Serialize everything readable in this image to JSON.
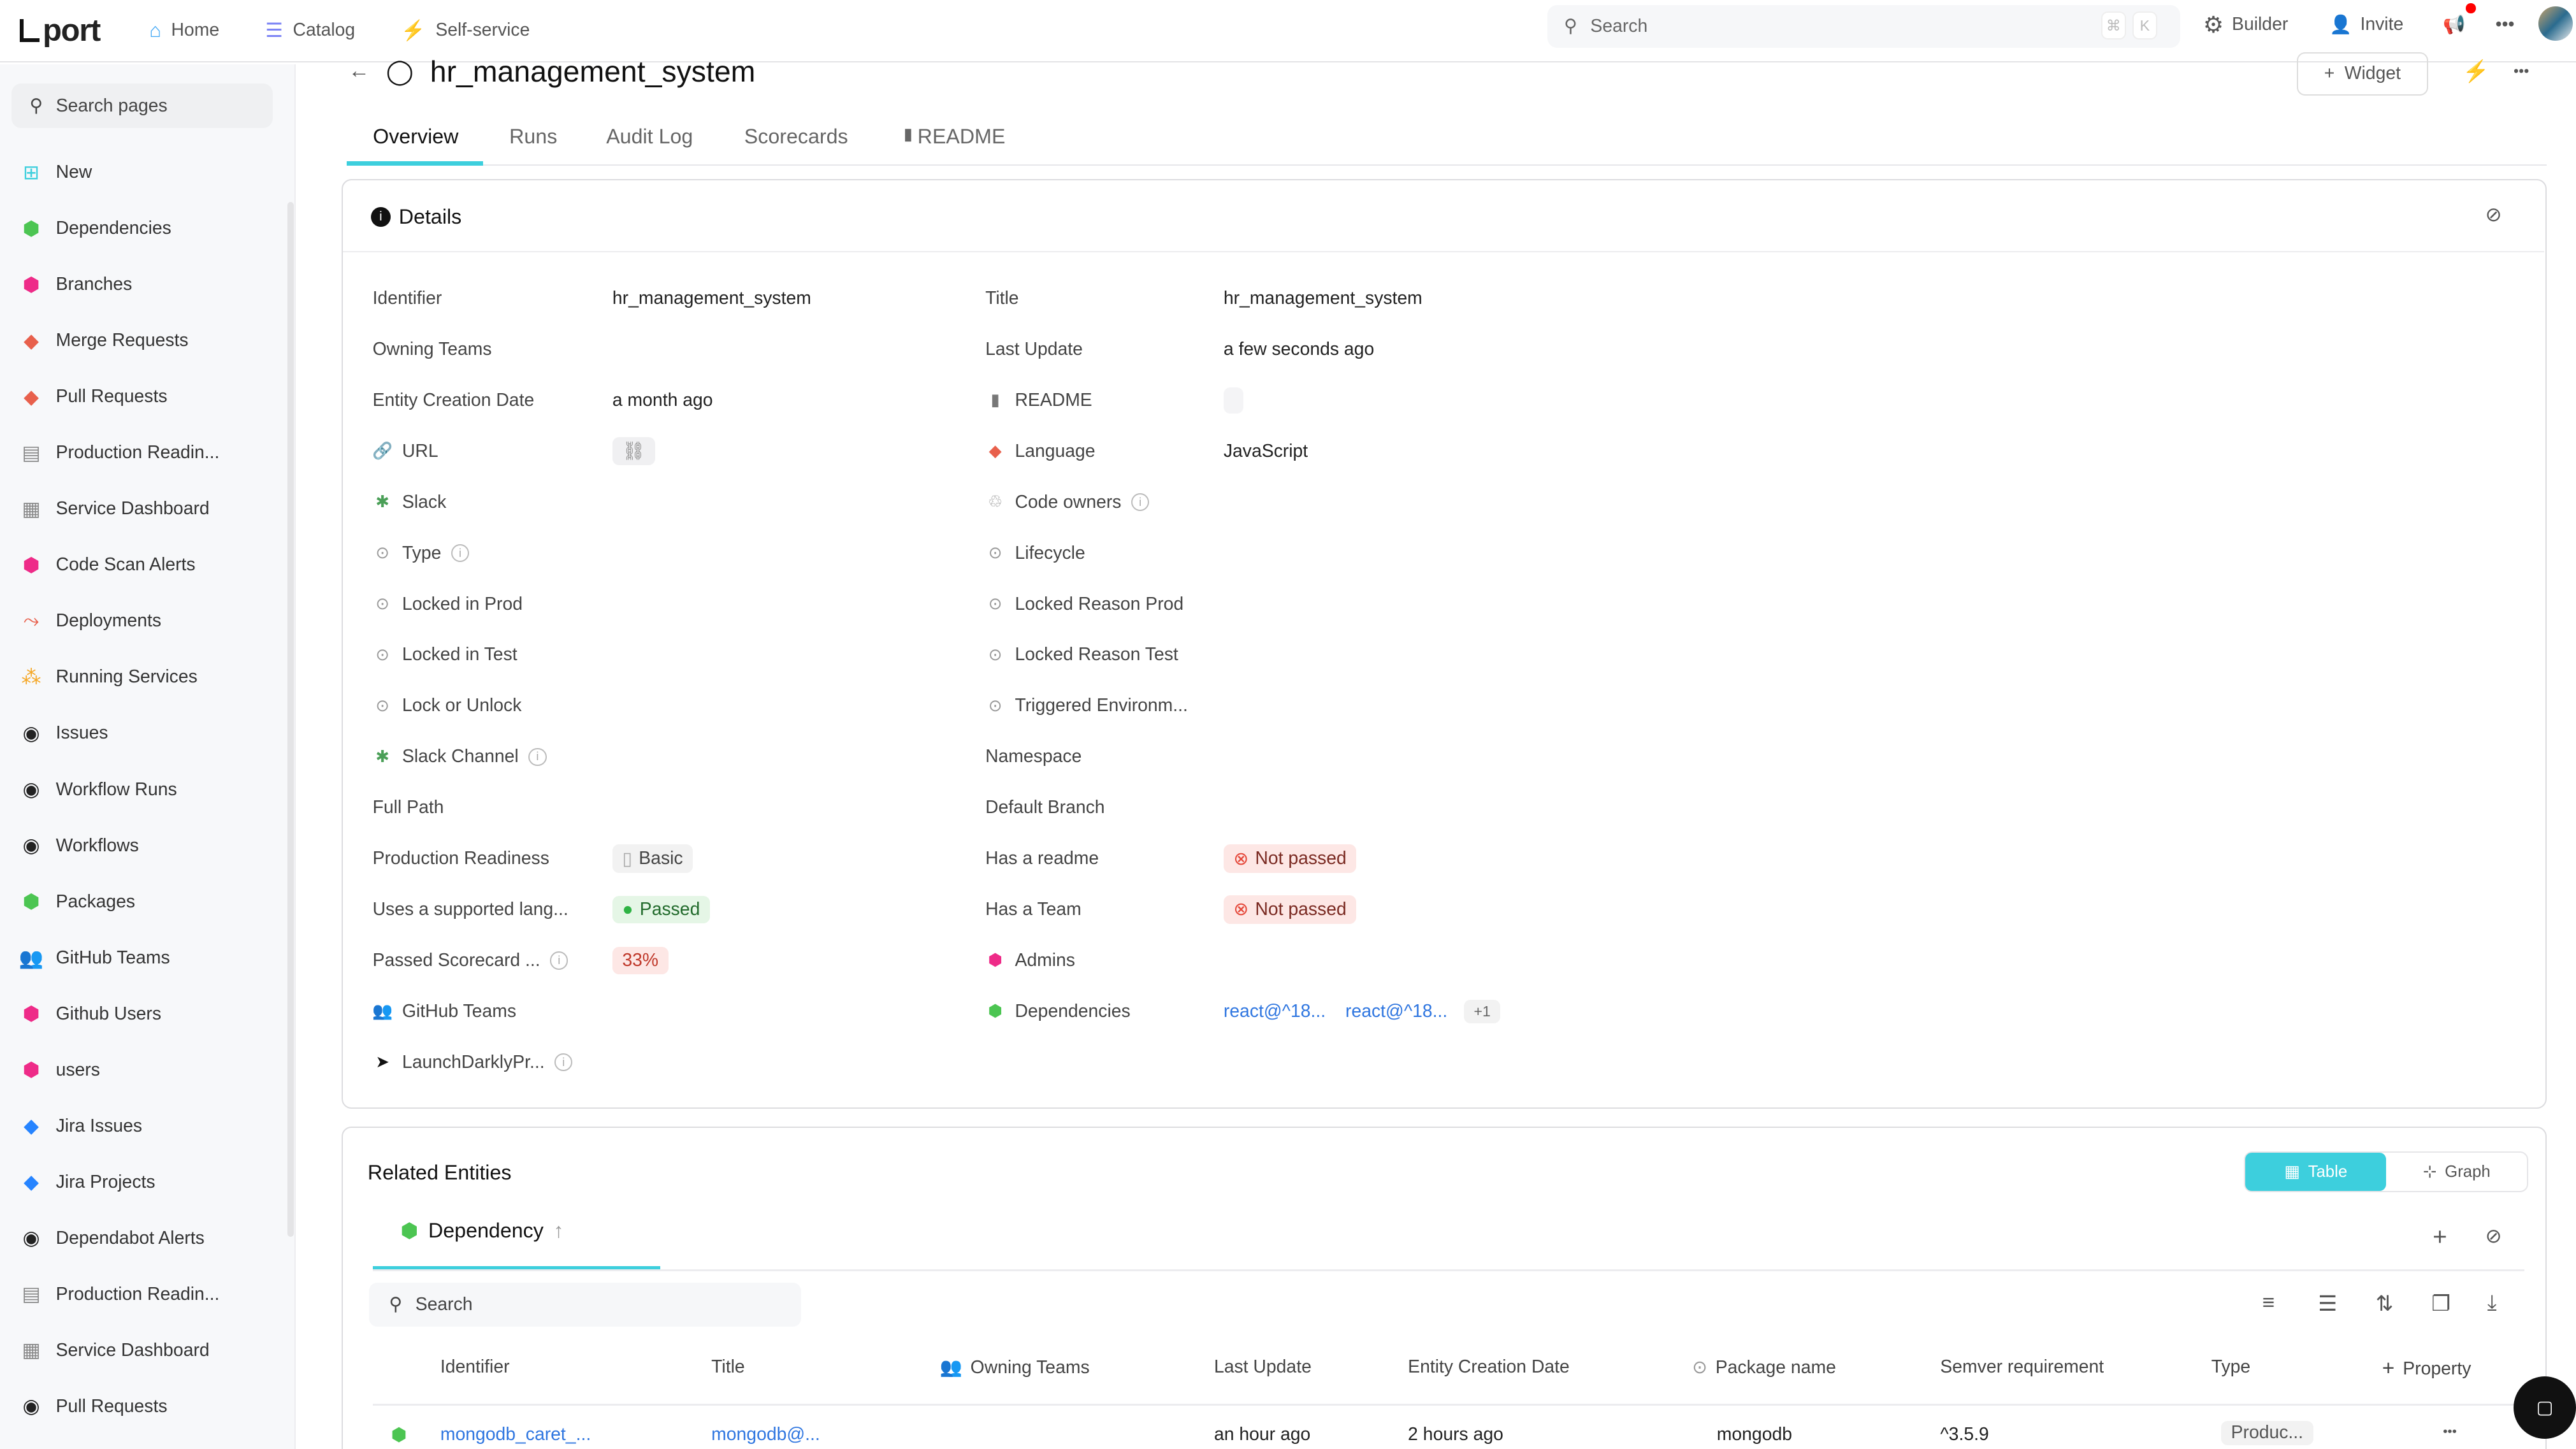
{
  "topbar": {
    "logo": "port",
    "nav": [
      {
        "label": "Home",
        "icon": "home-icon",
        "color": "#3da5f5"
      },
      {
        "label": "Catalog",
        "icon": "list-icon",
        "color": "#7b83f5"
      },
      {
        "label": "Self-service",
        "icon": "lightning-icon",
        "color": "#f5b731"
      }
    ],
    "search_placeholder": "Search",
    "kbd": [
      "⌘",
      "K"
    ],
    "builder": "Builder",
    "invite": "Invite"
  },
  "sidebar": {
    "search_placeholder": "Search pages",
    "items": [
      {
        "label": "New",
        "icon": "plus-square-icon",
        "color": "#3dcfdd"
      },
      {
        "label": "Dependencies",
        "icon": "package-icon",
        "color": "#4cc552"
      },
      {
        "label": "Branches",
        "icon": "cube-icon",
        "color": "#ee2b88"
      },
      {
        "label": "Merge Requests",
        "icon": "git-icon",
        "color": "#e8604c"
      },
      {
        "label": "Pull Requests",
        "icon": "git-icon",
        "color": "#e8604c"
      },
      {
        "label": "Production Readin...",
        "icon": "table-icon",
        "color": "#888888"
      },
      {
        "label": "Service Dashboard",
        "icon": "dashboard-icon",
        "color": "#888888"
      },
      {
        "label": "Code Scan Alerts",
        "icon": "cube-icon",
        "color": "#ee2b88"
      },
      {
        "label": "Deployments",
        "icon": "deploy-icon",
        "color": "#e8604c"
      },
      {
        "label": "Running Services",
        "icon": "services-icon",
        "color": "#f5a623"
      },
      {
        "label": "Issues",
        "icon": "github-icon",
        "color": "#222222"
      },
      {
        "label": "Workflow Runs",
        "icon": "github-icon",
        "color": "#222222"
      },
      {
        "label": "Workflows",
        "icon": "github-icon",
        "color": "#222222"
      },
      {
        "label": "Packages",
        "icon": "package-icon",
        "color": "#4cc552"
      },
      {
        "label": "GitHub Teams",
        "icon": "team-icon",
        "color": "#666666"
      },
      {
        "label": "Github Users",
        "icon": "cube-icon",
        "color": "#ee2b88"
      },
      {
        "label": "users",
        "icon": "cube-icon",
        "color": "#ee2b88"
      },
      {
        "label": "Jira Issues",
        "icon": "jira-icon",
        "color": "#2684ff"
      },
      {
        "label": "Jira Projects",
        "icon": "jira-icon",
        "color": "#2684ff"
      },
      {
        "label": "Dependabot Alerts",
        "icon": "github-icon",
        "color": "#222222"
      },
      {
        "label": "Production Readin...",
        "icon": "table-icon",
        "color": "#888888"
      },
      {
        "label": "Service Dashboard",
        "icon": "dashboard-icon",
        "color": "#888888"
      },
      {
        "label": "Pull Requests",
        "icon": "github-icon",
        "color": "#222222"
      }
    ]
  },
  "page": {
    "title": "hr_management_system",
    "widget_label": "Widget",
    "tabs": [
      "Overview",
      "Runs",
      "Audit Log",
      "Scorecards",
      "README"
    ]
  },
  "details": {
    "title": "Details",
    "left": [
      {
        "label": "Identifier",
        "value": "hr_management_system"
      },
      {
        "label": "Owning Teams",
        "value": ""
      },
      {
        "label": "Entity Creation Date",
        "value": "a month ago"
      },
      {
        "label": "URL",
        "icon": "link-icon",
        "value": "",
        "kind": "link"
      },
      {
        "label": "Slack",
        "icon": "slack-icon",
        "value": ""
      },
      {
        "label": "Type",
        "icon": "circle-icon",
        "info": true,
        "value": ""
      },
      {
        "label": "Locked in Prod",
        "icon": "circle-icon",
        "value": ""
      },
      {
        "label": "Locked in Test",
        "icon": "circle-icon",
        "value": ""
      },
      {
        "label": "Lock or Unlock",
        "icon": "circle-icon",
        "value": ""
      },
      {
        "label": "Slack Channel",
        "icon": "slack-icon",
        "info": true,
        "value": ""
      },
      {
        "label": "Full Path",
        "value": ""
      },
      {
        "label": "Production Readiness",
        "value": "Basic",
        "kind": "basic"
      },
      {
        "label": "Uses a supported lang...",
        "value": "Passed",
        "kind": "passed"
      },
      {
        "label": "Passed Scorecard ...",
        "info": true,
        "value": "33%",
        "kind": "percent"
      },
      {
        "label": "GitHub Teams",
        "icon": "team-icon",
        "value": ""
      },
      {
        "label": "LaunchDarklyPr...",
        "icon": "launchdarkly-icon",
        "info": true,
        "value": ""
      }
    ],
    "right": [
      {
        "label": "Title",
        "value": "hr_management_system"
      },
      {
        "label": "Last Update",
        "value": "a few seconds ago"
      },
      {
        "label": "README",
        "icon": "book-icon",
        "value": "",
        "kind": "empty"
      },
      {
        "label": "Language",
        "icon": "git-icon",
        "value": "JavaScript"
      },
      {
        "label": "Code owners",
        "icon": "owners-icon",
        "info": true,
        "value": ""
      },
      {
        "label": "Lifecycle",
        "icon": "circle-icon",
        "value": ""
      },
      {
        "label": "Locked Reason Prod",
        "icon": "circle-icon",
        "value": ""
      },
      {
        "label": "Locked Reason Test",
        "icon": "circle-icon",
        "value": ""
      },
      {
        "label": "Triggered Environm...",
        "icon": "circle-icon",
        "value": ""
      },
      {
        "label": "Namespace",
        "value": ""
      },
      {
        "label": "Default Branch",
        "value": ""
      },
      {
        "label": "Has a readme",
        "value": "Not passed",
        "kind": "failed"
      },
      {
        "label": "Has a Team",
        "value": "Not passed",
        "kind": "failed"
      },
      {
        "label": "Admins",
        "icon": "cube-icon",
        "value": ""
      },
      {
        "label": "Dependencies",
        "icon": "package-icon",
        "value": "",
        "kind": "links",
        "links": [
          "react@^18...",
          "react@^18..."
        ],
        "more": "+1"
      },
      {
        "label": "",
        "value": ""
      }
    ]
  },
  "related": {
    "title": "Related Entities",
    "toggle": [
      "Table",
      "Graph"
    ],
    "tab": "Dependency",
    "search_placeholder": "Search",
    "columns": [
      "Identifier",
      "Title",
      "Owning Teams",
      "Last Update",
      "Entity Creation Date",
      "Package name",
      "Semver requirement",
      "Type",
      "Property"
    ],
    "rows": [
      [
        "mongodb_caret_...",
        "mongodb@...",
        "",
        "an hour ago",
        "2 hours ago",
        "mongodb",
        "^3.5.9",
        "Produc..."
      ]
    ]
  }
}
